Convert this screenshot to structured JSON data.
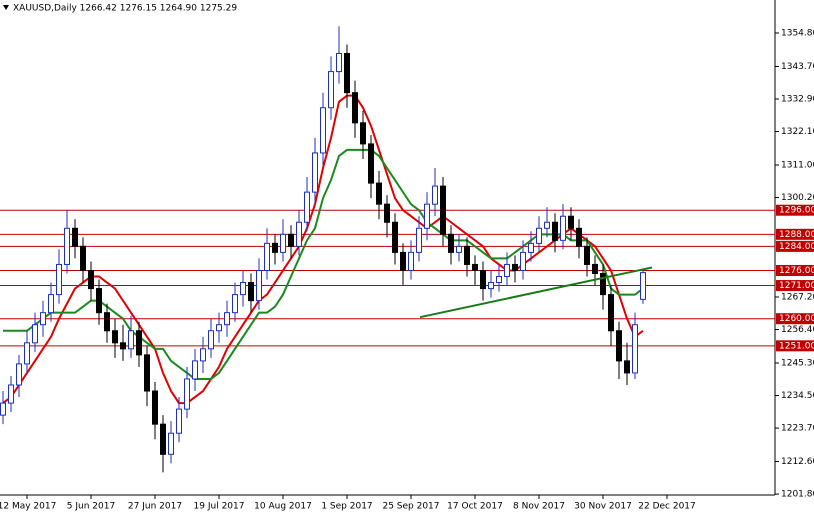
{
  "chart_data": {
    "type": "candlestick",
    "title": "XAUUSD,Daily  1266.42 1276.15 1264.90 1275.29",
    "categories": [
      null,
      null,
      null,
      "12 May 2017",
      null,
      null,
      null,
      null,
      null,
      null,
      null,
      "5 Jun 2017",
      null,
      null,
      null,
      null,
      null,
      null,
      null,
      "27 Jun 2017",
      null,
      null,
      null,
      null,
      null,
      null,
      null,
      "19 Jul 2017",
      null,
      null,
      null,
      null,
      null,
      null,
      null,
      "10 Aug 2017",
      null,
      null,
      null,
      null,
      null,
      null,
      null,
      "1 Sep 2017",
      null,
      null,
      null,
      null,
      null,
      null,
      null,
      "25 Sep 2017",
      null,
      null,
      null,
      null,
      null,
      null,
      null,
      "17 Oct 2017",
      null,
      null,
      null,
      null,
      null,
      null,
      null,
      "8 Nov 2017",
      null,
      null,
      null,
      null,
      null,
      null,
      null,
      "30 Nov 2017",
      null,
      null,
      null,
      null,
      null,
      null,
      null,
      "22 Dec 2017"
    ],
    "ohlc": [
      [
        1228,
        1236,
        1225,
        1232
      ],
      [
        1232,
        1241,
        1229,
        1238
      ],
      [
        1238,
        1248,
        1234,
        1245
      ],
      [
        1245,
        1256,
        1242,
        1252
      ],
      [
        1252,
        1262,
        1249,
        1258
      ],
      [
        1258,
        1266,
        1254,
        1262
      ],
      [
        1262,
        1272,
        1259,
        1268
      ],
      [
        1268,
        1283,
        1265,
        1278
      ],
      [
        1278,
        1296,
        1275,
        1290
      ],
      [
        1290,
        1293,
        1280,
        1284
      ],
      [
        1284,
        1287,
        1272,
        1276
      ],
      [
        1276,
        1279,
        1266,
        1270
      ],
      [
        1270,
        1273,
        1258,
        1262
      ],
      [
        1262,
        1265,
        1252,
        1256
      ],
      [
        1256,
        1260,
        1247,
        1252
      ],
      [
        1252,
        1258,
        1246,
        1250
      ],
      [
        1250,
        1261,
        1247,
        1256
      ],
      [
        1256,
        1259,
        1244,
        1248
      ],
      [
        1248,
        1251,
        1231,
        1236
      ],
      [
        1236,
        1239,
        1220,
        1225
      ],
      [
        1225,
        1228,
        1209,
        1215
      ],
      [
        1215,
        1226,
        1212,
        1222
      ],
      [
        1222,
        1234,
        1219,
        1230
      ],
      [
        1230,
        1244,
        1227,
        1240
      ],
      [
        1240,
        1250,
        1236,
        1246
      ],
      [
        1246,
        1254,
        1242,
        1250
      ],
      [
        1250,
        1260,
        1247,
        1256
      ],
      [
        1256,
        1262,
        1252,
        1258
      ],
      [
        1258,
        1266,
        1254,
        1262
      ],
      [
        1262,
        1272,
        1259,
        1268
      ],
      [
        1268,
        1276,
        1264,
        1272
      ],
      [
        1272,
        1275,
        1262,
        1266
      ],
      [
        1266,
        1280,
        1263,
        1276
      ],
      [
        1276,
        1290,
        1273,
        1285
      ],
      [
        1285,
        1288,
        1278,
        1282
      ],
      [
        1282,
        1293,
        1279,
        1288
      ],
      [
        1288,
        1291,
        1280,
        1284
      ],
      [
        1284,
        1296,
        1281,
        1292
      ],
      [
        1292,
        1307,
        1289,
        1302
      ],
      [
        1302,
        1320,
        1298,
        1315
      ],
      [
        1315,
        1335,
        1311,
        1330
      ],
      [
        1330,
        1347,
        1326,
        1342
      ],
      [
        1342,
        1357,
        1338,
        1348
      ],
      [
        1348,
        1351,
        1330,
        1335
      ],
      [
        1335,
        1339,
        1320,
        1325
      ],
      [
        1325,
        1329,
        1313,
        1318
      ],
      [
        1318,
        1321,
        1300,
        1305
      ],
      [
        1305,
        1309,
        1293,
        1298
      ],
      [
        1298,
        1301,
        1287,
        1292
      ],
      [
        1292,
        1295,
        1278,
        1282
      ],
      [
        1282,
        1285,
        1271,
        1276
      ],
      [
        1276,
        1286,
        1273,
        1282
      ],
      [
        1282,
        1294,
        1279,
        1290
      ],
      [
        1290,
        1302,
        1286,
        1298
      ],
      [
        1298,
        1310,
        1294,
        1304
      ],
      [
        1304,
        1307,
        1284,
        1288
      ],
      [
        1288,
        1291,
        1278,
        1282
      ],
      [
        1282,
        1288,
        1279,
        1284
      ],
      [
        1284,
        1287,
        1274,
        1278
      ],
      [
        1278,
        1281,
        1271,
        1276
      ],
      [
        1276,
        1279,
        1266,
        1270
      ],
      [
        1270,
        1276,
        1267,
        1272
      ],
      [
        1272,
        1278,
        1269,
        1274
      ],
      [
        1274,
        1282,
        1271,
        1278
      ],
      [
        1278,
        1281,
        1272,
        1276
      ],
      [
        1276,
        1286,
        1273,
        1282
      ],
      [
        1282,
        1289,
        1279,
        1285
      ],
      [
        1285,
        1294,
        1282,
        1290
      ],
      [
        1290,
        1297,
        1287,
        1292
      ],
      [
        1292,
        1295,
        1282,
        1286
      ],
      [
        1286,
        1298,
        1283,
        1294
      ],
      [
        1294,
        1297,
        1286,
        1290
      ],
      [
        1290,
        1293,
        1280,
        1284
      ],
      [
        1284,
        1287,
        1274,
        1278
      ],
      [
        1278,
        1281,
        1271,
        1275
      ],
      [
        1275,
        1278,
        1263,
        1268
      ],
      [
        1268,
        1271,
        1251,
        1256
      ],
      [
        1256,
        1259,
        1240,
        1246
      ],
      [
        1246,
        1252,
        1238,
        1242
      ],
      [
        1242,
        1262,
        1240,
        1258
      ],
      [
        1266.42,
        1276.15,
        1264.9,
        1275.29
      ],
      null,
      null,
      null
    ],
    "up_color": "#1f2fbf",
    "down_color": "#000000",
    "series": [
      {
        "color": "#e00000",
        "values": [
          1232,
          1234,
          1238,
          1242,
          1246,
          1250,
          1254,
          1260,
          1265,
          1270,
          1272,
          1274,
          1274,
          1272,
          1270,
          1266,
          1262,
          1258,
          1254,
          1250,
          1242,
          1236,
          1232,
          1232,
          1234,
          1236,
          1240,
          1244,
          1250,
          1254,
          1258,
          1262,
          1266,
          1268,
          1272,
          1276,
          1280,
          1284,
          1290,
          1298,
          1310,
          1320,
          1332,
          1334,
          1334,
          1330,
          1324,
          1316,
          1308,
          1300,
          1296,
          1294,
          1292,
          1290,
          1292,
          1294,
          1292,
          1290,
          1288,
          1286,
          1284,
          1280,
          1278,
          1276,
          1276,
          1278,
          1280,
          1282,
          1284,
          1286,
          1288,
          1290,
          1288,
          1286,
          1284,
          1280,
          1276,
          1268,
          1260,
          1254,
          1256,
          null,
          null,
          null
        ]
      },
      {
        "color": "#1a8a1a",
        "values": [
          1256,
          1256,
          1256,
          1256,
          1258,
          1260,
          1262,
          1262,
          1262,
          1262,
          1264,
          1266,
          1266,
          1264,
          1262,
          1260,
          1256,
          1254,
          1252,
          1250,
          1250,
          1246,
          1244,
          1242,
          1240,
          1240,
          1240,
          1242,
          1246,
          1250,
          1254,
          1258,
          1262,
          1262,
          1264,
          1268,
          1274,
          1280,
          1286,
          1290,
          1300,
          1306,
          1314,
          1316,
          1316,
          1316,
          1316,
          1314,
          1310,
          1306,
          1302,
          1298,
          1296,
          1292,
          1290,
          1288,
          1286,
          1286,
          1286,
          1284,
          1282,
          1280,
          1280,
          1280,
          1282,
          1284,
          1286,
          1288,
          1288,
          1288,
          1288,
          1286,
          1286,
          1286,
          1282,
          1278,
          1270,
          1268,
          1268,
          1268,
          1270,
          null,
          null,
          null
        ]
      }
    ],
    "levels": [
      {
        "value": 1296,
        "label": "1296.00"
      },
      {
        "value": 1288,
        "label": "1288.00"
      },
      {
        "value": 1284,
        "label": "1284.00"
      },
      {
        "value": 1276,
        "label": "1276.00"
      },
      {
        "value": 1271,
        "label": "1271.00"
      },
      {
        "value": 1260,
        "label": "1260.00"
      },
      {
        "value": 1251,
        "label": "1251.00"
      }
    ],
    "level_color": "#c00000",
    "trendline": {
      "values": [
        1260.5,
        1277
      ],
      "color": "#1a7a1a"
    },
    "ylim": [
      1201.5,
      1365.75
    ],
    "yticks": [
      {
        "value": 1354.8,
        "label": "1354.80"
      },
      {
        "value": 1343.7,
        "label": "1343.70"
      },
      {
        "value": 1332.9,
        "label": "1332.90"
      },
      {
        "value": 1322.1,
        "label": "1322.10"
      },
      {
        "value": 1311,
        "label": "1311.00"
      },
      {
        "value": 1300.2,
        "label": "1300.20"
      },
      {
        "value": 1267.2,
        "label": "1267.20"
      },
      {
        "value": 1256.4,
        "label": "1256.40"
      },
      {
        "value": 1245.3,
        "label": "1245.30"
      },
      {
        "value": 1234.5,
        "label": "1234.50"
      },
      {
        "value": 1223.7,
        "label": "1223.70"
      },
      {
        "value": 1212.6,
        "label": "1212.60"
      },
      {
        "value": 1201.8,
        "label": "1201.80"
      }
    ]
  }
}
